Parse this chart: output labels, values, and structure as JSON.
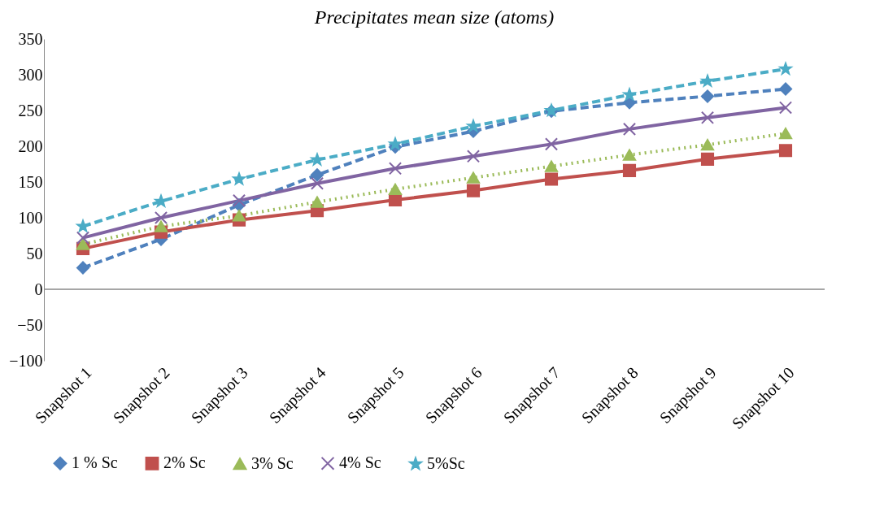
{
  "chart_data": {
    "type": "line",
    "title": "Precipitates mean size (atoms)",
    "categories": [
      "Snapshot 1",
      "Snapshot 2",
      "Snapshot 3",
      "Snapshot 4",
      "Snapshot 5",
      "Snapshot 6",
      "Snapshot 7",
      "Snapshot 8",
      "Snapshot 9",
      "Snapshot 10"
    ],
    "series": [
      {
        "name": "1 % Sc",
        "color": "#4f81bd",
        "marker": "diamond",
        "line_style": "dashed",
        "values": [
          30,
          70,
          118,
          160,
          199,
          221,
          249,
          261,
          270,
          280
        ]
      },
      {
        "name": "2% Sc",
        "color": "#c0504d",
        "marker": "square",
        "line_style": "solid",
        "values": [
          57,
          80,
          97,
          110,
          125,
          138,
          154,
          166,
          182,
          194
        ]
      },
      {
        "name": "3% Sc",
        "color": "#9bbb59",
        "marker": "triangle",
        "line_style": "dotted",
        "values": [
          63,
          88,
          103,
          122,
          140,
          156,
          172,
          188,
          202,
          218
        ]
      },
      {
        "name": "4% Sc",
        "color": "#8064a2",
        "marker": "cross",
        "line_style": "solid",
        "values": [
          72,
          100,
          124,
          148,
          169,
          186,
          203,
          224,
          240,
          254
        ]
      },
      {
        "name": "5%Sc",
        "color": "#4bacc6",
        "marker": "star",
        "line_style": "dashed",
        "values": [
          88,
          123,
          154,
          181,
          203,
          228,
          250,
          272,
          291,
          308
        ]
      }
    ],
    "ylim": [
      -100,
      350
    ],
    "yticks": [
      -100,
      -50,
      0,
      50,
      100,
      150,
      200,
      250,
      300,
      350
    ],
    "ref_lines": [
      {
        "axis": "y",
        "value": 0,
        "color": "#888888"
      }
    ],
    "grid": false,
    "legend": "bottom"
  }
}
